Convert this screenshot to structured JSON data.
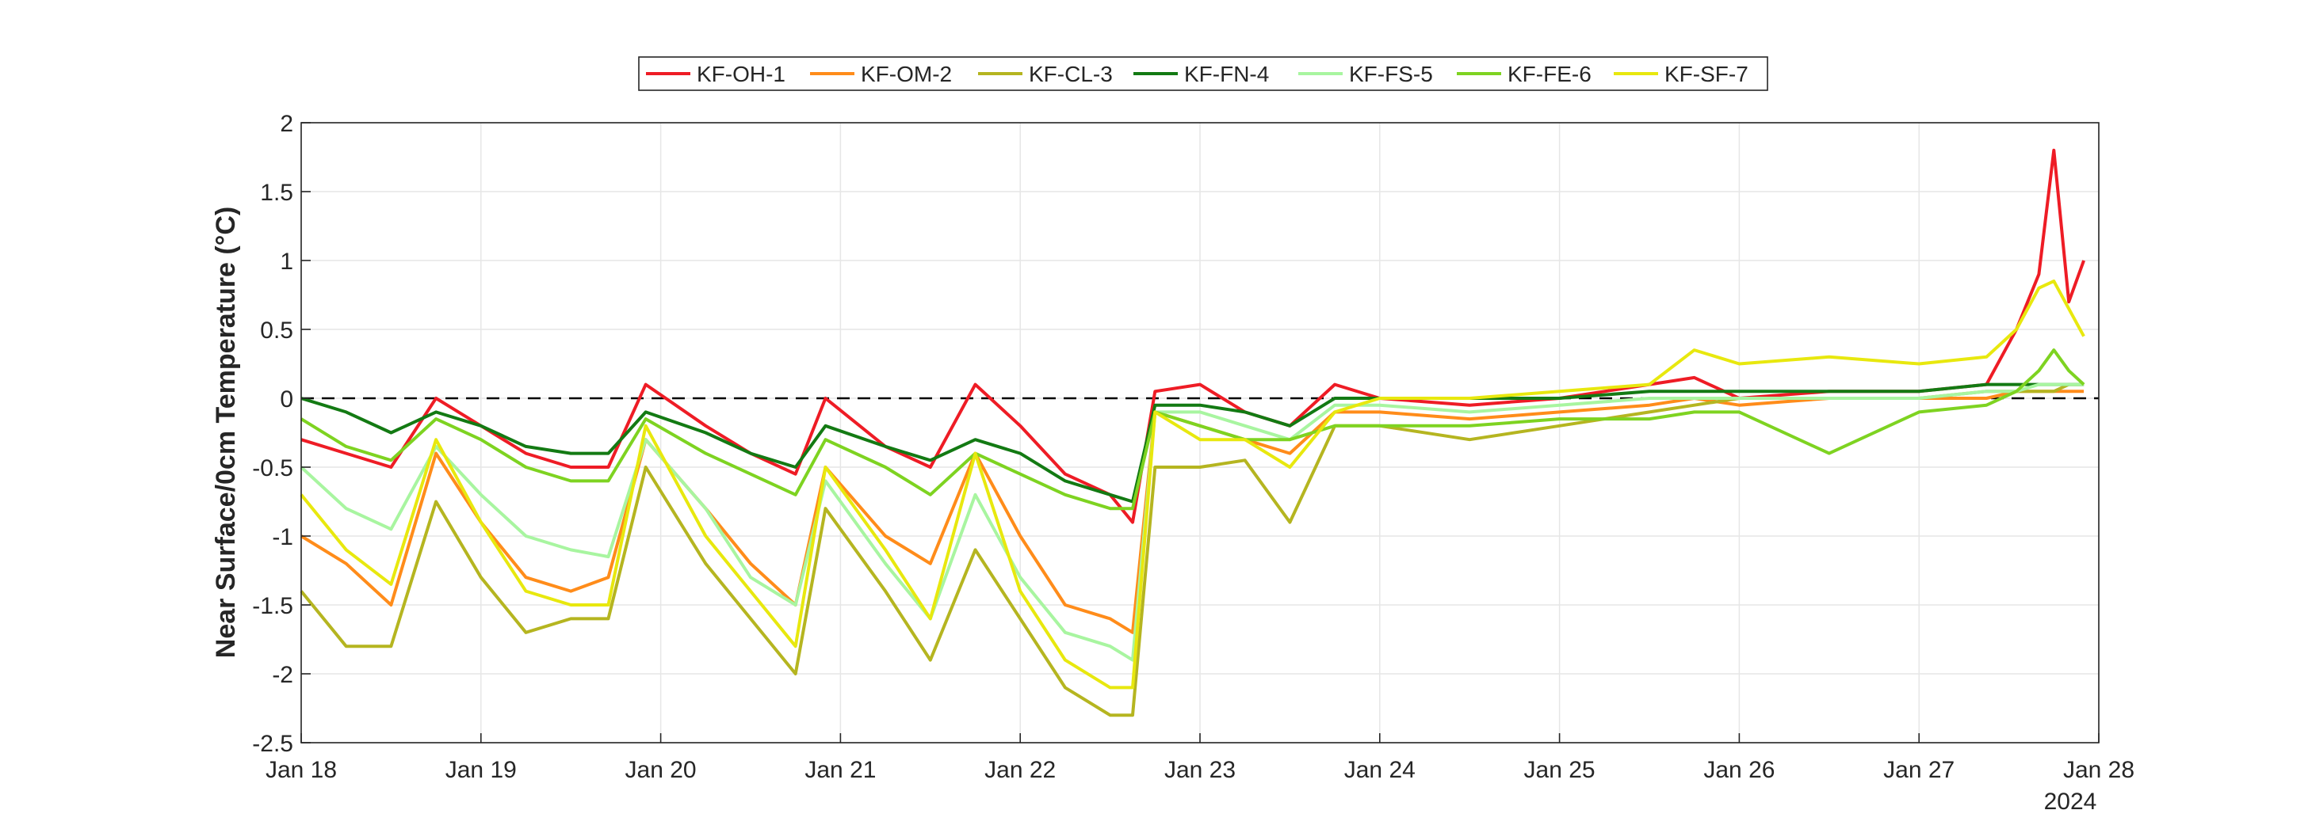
{
  "chart_data": {
    "type": "line",
    "title": "",
    "xlabel": "",
    "ylabel": "Near Surface/0cm Temperature (°C)",
    "year_label": "2024",
    "xlim": [
      "2024-01-18",
      "2024-01-28"
    ],
    "ylim": [
      -2.5,
      2
    ],
    "y_ticks": [
      -2.5,
      -2,
      -1.5,
      -1,
      -0.5,
      0,
      0.5,
      1,
      1.5,
      2
    ],
    "y_tick_labels": [
      "-2.5",
      "-2",
      "-1.5",
      "-1",
      "-0.5",
      "0",
      "0.5",
      "1",
      "1.5",
      "2"
    ],
    "x_ticks": [
      "2024-01-18",
      "2024-01-19",
      "2024-01-20",
      "2024-01-21",
      "2024-01-22",
      "2024-01-23",
      "2024-01-24",
      "2024-01-25",
      "2024-01-26",
      "2024-01-27",
      "2024-01-28"
    ],
    "x_tick_labels": [
      "Jan 18",
      "Jan 19",
      "Jan 20",
      "Jan 21",
      "Jan 22",
      "Jan 23",
      "Jan 24",
      "Jan 25",
      "Jan 26",
      "Jan 27",
      "Jan 28"
    ],
    "grid": true,
    "legend_position": "top-center",
    "reference_line": {
      "y": 0,
      "style": "dashed"
    },
    "series": [
      {
        "name": "KF-OH-1",
        "color": "#ee1c25",
        "x": [
          "2024-01-18 00:00",
          "2024-01-18 06:00",
          "2024-01-18 12:00",
          "2024-01-18 18:00",
          "2024-01-19 00:00",
          "2024-01-19 06:00",
          "2024-01-19 12:00",
          "2024-01-19 17:00",
          "2024-01-19 22:00",
          "2024-01-20 06:00",
          "2024-01-20 12:00",
          "2024-01-20 18:00",
          "2024-01-20 22:00",
          "2024-01-21 06:00",
          "2024-01-21 12:00",
          "2024-01-21 18:00",
          "2024-01-22 00:00",
          "2024-01-22 06:00",
          "2024-01-22 12:00",
          "2024-01-22 15:00",
          "2024-01-22 18:00",
          "2024-01-23 00:00",
          "2024-01-23 06:00",
          "2024-01-23 12:00",
          "2024-01-23 18:00",
          "2024-01-24 00:00",
          "2024-01-24 12:00",
          "2024-01-25 00:00",
          "2024-01-25 12:00",
          "2024-01-25 18:00",
          "2024-01-26 00:00",
          "2024-01-26 12:00",
          "2024-01-27 00:00",
          "2024-01-27 09:00",
          "2024-01-27 13:00",
          "2024-01-27 16:00",
          "2024-01-27 18:00",
          "2024-01-27 20:00",
          "2024-01-27 22:00"
        ],
        "y": [
          -0.3,
          -0.4,
          -0.5,
          0.0,
          -0.2,
          -0.4,
          -0.5,
          -0.5,
          0.1,
          -0.2,
          -0.4,
          -0.55,
          0.0,
          -0.35,
          -0.5,
          0.1,
          -0.2,
          -0.55,
          -0.7,
          -0.9,
          0.05,
          0.1,
          -0.1,
          -0.2,
          0.1,
          0.0,
          -0.05,
          0.0,
          0.1,
          0.15,
          0.0,
          0.05,
          0.05,
          0.1,
          0.5,
          0.9,
          1.8,
          0.7,
          1.0
        ]
      },
      {
        "name": "KF-OM-2",
        "color": "#ff8c1a",
        "x": [
          "2024-01-18 00:00",
          "2024-01-18 06:00",
          "2024-01-18 12:00",
          "2024-01-18 18:00",
          "2024-01-19 00:00",
          "2024-01-19 06:00",
          "2024-01-19 12:00",
          "2024-01-19 17:00",
          "2024-01-19 22:00",
          "2024-01-20 06:00",
          "2024-01-20 12:00",
          "2024-01-20 18:00",
          "2024-01-20 22:00",
          "2024-01-21 06:00",
          "2024-01-21 12:00",
          "2024-01-21 18:00",
          "2024-01-22 00:00",
          "2024-01-22 06:00",
          "2024-01-22 12:00",
          "2024-01-22 15:00",
          "2024-01-22 18:00",
          "2024-01-23 00:00",
          "2024-01-23 06:00",
          "2024-01-23 12:00",
          "2024-01-23 18:00",
          "2024-01-24 00:00",
          "2024-01-24 12:00",
          "2024-01-25 00:00",
          "2024-01-25 12:00",
          "2024-01-25 18:00",
          "2024-01-26 00:00",
          "2024-01-26 12:00",
          "2024-01-27 00:00",
          "2024-01-27 09:00",
          "2024-01-27 13:00",
          "2024-01-27 16:00",
          "2024-01-27 18:00",
          "2024-01-27 20:00",
          "2024-01-27 22:00"
        ],
        "y": [
          -1.0,
          -1.2,
          -1.5,
          -0.4,
          -0.9,
          -1.3,
          -1.4,
          -1.3,
          -0.3,
          -0.8,
          -1.2,
          -1.5,
          -0.5,
          -1.0,
          -1.2,
          -0.4,
          -1.0,
          -1.5,
          -1.6,
          -1.7,
          -0.1,
          -0.2,
          -0.3,
          -0.4,
          -0.1,
          -0.1,
          -0.15,
          -0.1,
          -0.05,
          0.0,
          -0.05,
          0.0,
          0.0,
          0.0,
          0.05,
          0.05,
          0.05,
          0.05,
          0.05
        ]
      },
      {
        "name": "KF-CL-3",
        "color": "#b5b520",
        "x": [
          "2024-01-18 00:00",
          "2024-01-18 06:00",
          "2024-01-18 12:00",
          "2024-01-18 18:00",
          "2024-01-19 00:00",
          "2024-01-19 06:00",
          "2024-01-19 12:00",
          "2024-01-19 17:00",
          "2024-01-19 22:00",
          "2024-01-20 06:00",
          "2024-01-20 12:00",
          "2024-01-20 18:00",
          "2024-01-20 22:00",
          "2024-01-21 06:00",
          "2024-01-21 12:00",
          "2024-01-21 18:00",
          "2024-01-22 00:00",
          "2024-01-22 06:00",
          "2024-01-22 12:00",
          "2024-01-22 15:00",
          "2024-01-22 18:00",
          "2024-01-23 00:00",
          "2024-01-23 06:00",
          "2024-01-23 12:00",
          "2024-01-23 18:00",
          "2024-01-24 00:00",
          "2024-01-24 12:00",
          "2024-01-25 00:00",
          "2024-01-25 12:00",
          "2024-01-25 18:00",
          "2024-01-26 00:00",
          "2024-01-26 12:00",
          "2024-01-27 00:00",
          "2024-01-27 09:00",
          "2024-01-27 13:00",
          "2024-01-27 16:00",
          "2024-01-27 18:00",
          "2024-01-27 20:00",
          "2024-01-27 22:00"
        ],
        "y": [
          -1.4,
          -1.8,
          -1.8,
          -0.75,
          -1.3,
          -1.7,
          -1.6,
          -1.6,
          -0.5,
          -1.2,
          -1.6,
          -2.0,
          -0.8,
          -1.4,
          -1.9,
          -1.1,
          -1.6,
          -2.1,
          -2.3,
          -2.3,
          -0.5,
          -0.5,
          -0.45,
          -0.9,
          -0.2,
          -0.2,
          -0.3,
          -0.2,
          -0.1,
          -0.05,
          0.0,
          0.0,
          0.0,
          0.05,
          0.05,
          0.05,
          0.05,
          0.1,
          0.1
        ]
      },
      {
        "name": "KF-FN-4",
        "color": "#137a13",
        "x": [
          "2024-01-18 00:00",
          "2024-01-18 06:00",
          "2024-01-18 12:00",
          "2024-01-18 18:00",
          "2024-01-19 00:00",
          "2024-01-19 06:00",
          "2024-01-19 12:00",
          "2024-01-19 17:00",
          "2024-01-19 22:00",
          "2024-01-20 06:00",
          "2024-01-20 12:00",
          "2024-01-20 18:00",
          "2024-01-20 22:00",
          "2024-01-21 06:00",
          "2024-01-21 12:00",
          "2024-01-21 18:00",
          "2024-01-22 00:00",
          "2024-01-22 06:00",
          "2024-01-22 12:00",
          "2024-01-22 15:00",
          "2024-01-22 18:00",
          "2024-01-23 00:00",
          "2024-01-23 06:00",
          "2024-01-23 12:00",
          "2024-01-23 18:00",
          "2024-01-24 00:00",
          "2024-01-24 12:00",
          "2024-01-25 00:00",
          "2024-01-25 12:00",
          "2024-01-25 18:00",
          "2024-01-26 00:00",
          "2024-01-26 12:00",
          "2024-01-27 00:00",
          "2024-01-27 09:00",
          "2024-01-27 13:00",
          "2024-01-27 16:00",
          "2024-01-27 18:00",
          "2024-01-27 20:00",
          "2024-01-27 22:00"
        ],
        "y": [
          0.0,
          -0.1,
          -0.25,
          -0.1,
          -0.2,
          -0.35,
          -0.4,
          -0.4,
          -0.1,
          -0.25,
          -0.4,
          -0.5,
          -0.2,
          -0.35,
          -0.45,
          -0.3,
          -0.4,
          -0.6,
          -0.7,
          -0.75,
          -0.05,
          -0.05,
          -0.1,
          -0.2,
          0.0,
          0.0,
          0.0,
          0.0,
          0.05,
          0.05,
          0.05,
          0.05,
          0.05,
          0.1,
          0.1,
          0.1,
          0.1,
          0.1,
          0.1
        ]
      },
      {
        "name": "KF-FS-5",
        "color": "#a8f5a0",
        "x": [
          "2024-01-18 00:00",
          "2024-01-18 06:00",
          "2024-01-18 12:00",
          "2024-01-18 18:00",
          "2024-01-19 00:00",
          "2024-01-19 06:00",
          "2024-01-19 12:00",
          "2024-01-19 17:00",
          "2024-01-19 22:00",
          "2024-01-20 06:00",
          "2024-01-20 12:00",
          "2024-01-20 18:00",
          "2024-01-20 22:00",
          "2024-01-21 06:00",
          "2024-01-21 12:00",
          "2024-01-21 18:00",
          "2024-01-22 00:00",
          "2024-01-22 06:00",
          "2024-01-22 12:00",
          "2024-01-22 15:00",
          "2024-01-22 18:00",
          "2024-01-23 00:00",
          "2024-01-23 06:00",
          "2024-01-23 12:00",
          "2024-01-23 18:00",
          "2024-01-24 00:00",
          "2024-01-24 12:00",
          "2024-01-25 00:00",
          "2024-01-25 12:00",
          "2024-01-25 18:00",
          "2024-01-26 00:00",
          "2024-01-26 12:00",
          "2024-01-27 00:00",
          "2024-01-27 09:00",
          "2024-01-27 13:00",
          "2024-01-27 16:00",
          "2024-01-27 18:00",
          "2024-01-27 20:00",
          "2024-01-27 22:00"
        ],
        "y": [
          -0.5,
          -0.8,
          -0.95,
          -0.35,
          -0.7,
          -1.0,
          -1.1,
          -1.15,
          -0.3,
          -0.8,
          -1.3,
          -1.5,
          -0.6,
          -1.2,
          -1.6,
          -0.7,
          -1.3,
          -1.7,
          -1.8,
          -1.9,
          -0.1,
          -0.1,
          -0.2,
          -0.3,
          -0.05,
          -0.05,
          -0.1,
          -0.05,
          0.0,
          0.0,
          0.0,
          0.0,
          0.0,
          0.05,
          0.05,
          0.1,
          0.1,
          0.1,
          0.1
        ]
      },
      {
        "name": "KF-FE-6",
        "color": "#7ed321",
        "x": [
          "2024-01-18 00:00",
          "2024-01-18 06:00",
          "2024-01-18 12:00",
          "2024-01-18 18:00",
          "2024-01-19 00:00",
          "2024-01-19 06:00",
          "2024-01-19 12:00",
          "2024-01-19 17:00",
          "2024-01-19 22:00",
          "2024-01-20 06:00",
          "2024-01-20 12:00",
          "2024-01-20 18:00",
          "2024-01-20 22:00",
          "2024-01-21 06:00",
          "2024-01-21 12:00",
          "2024-01-21 18:00",
          "2024-01-22 00:00",
          "2024-01-22 06:00",
          "2024-01-22 12:00",
          "2024-01-22 15:00",
          "2024-01-22 18:00",
          "2024-01-23 00:00",
          "2024-01-23 06:00",
          "2024-01-23 12:00",
          "2024-01-23 18:00",
          "2024-01-24 00:00",
          "2024-01-24 12:00",
          "2024-01-25 00:00",
          "2024-01-25 12:00",
          "2024-01-25 18:00",
          "2024-01-26 00:00",
          "2024-01-26 12:00",
          "2024-01-27 00:00",
          "2024-01-27 09:00",
          "2024-01-27 13:00",
          "2024-01-27 16:00",
          "2024-01-27 18:00",
          "2024-01-27 20:00",
          "2024-01-27 22:00"
        ],
        "y": [
          -0.15,
          -0.35,
          -0.45,
          -0.15,
          -0.3,
          -0.5,
          -0.6,
          -0.6,
          -0.15,
          -0.4,
          -0.55,
          -0.7,
          -0.3,
          -0.5,
          -0.7,
          -0.4,
          -0.55,
          -0.7,
          -0.8,
          -0.8,
          -0.1,
          -0.2,
          -0.3,
          -0.3,
          -0.2,
          -0.2,
          -0.2,
          -0.15,
          -0.15,
          -0.1,
          -0.1,
          -0.4,
          -0.1,
          -0.05,
          0.05,
          0.2,
          0.35,
          0.2,
          0.1
        ]
      },
      {
        "name": "KF-SF-7",
        "color": "#e8e80e",
        "x": [
          "2024-01-18 00:00",
          "2024-01-18 06:00",
          "2024-01-18 12:00",
          "2024-01-18 18:00",
          "2024-01-19 00:00",
          "2024-01-19 06:00",
          "2024-01-19 12:00",
          "2024-01-19 17:00",
          "2024-01-19 22:00",
          "2024-01-20 06:00",
          "2024-01-20 12:00",
          "2024-01-20 18:00",
          "2024-01-20 22:00",
          "2024-01-21 06:00",
          "2024-01-21 12:00",
          "2024-01-21 18:00",
          "2024-01-22 00:00",
          "2024-01-22 06:00",
          "2024-01-22 12:00",
          "2024-01-22 15:00",
          "2024-01-22 18:00",
          "2024-01-23 00:00",
          "2024-01-23 06:00",
          "2024-01-23 12:00",
          "2024-01-23 18:00",
          "2024-01-24 00:00",
          "2024-01-24 12:00",
          "2024-01-25 00:00",
          "2024-01-25 12:00",
          "2024-01-25 18:00",
          "2024-01-26 00:00",
          "2024-01-26 12:00",
          "2024-01-27 00:00",
          "2024-01-27 09:00",
          "2024-01-27 13:00",
          "2024-01-27 16:00",
          "2024-01-27 18:00",
          "2024-01-27 20:00",
          "2024-01-27 22:00"
        ],
        "y": [
          -0.7,
          -1.1,
          -1.35,
          -0.3,
          -0.9,
          -1.4,
          -1.5,
          -1.5,
          -0.2,
          -1.0,
          -1.4,
          -1.8,
          -0.5,
          -1.1,
          -1.6,
          -0.4,
          -1.4,
          -1.9,
          -2.1,
          -2.1,
          -0.1,
          -0.3,
          -0.3,
          -0.5,
          -0.1,
          0.0,
          0.0,
          0.05,
          0.1,
          0.35,
          0.25,
          0.3,
          0.25,
          0.3,
          0.5,
          0.8,
          0.85,
          0.65,
          0.45
        ]
      }
    ]
  }
}
